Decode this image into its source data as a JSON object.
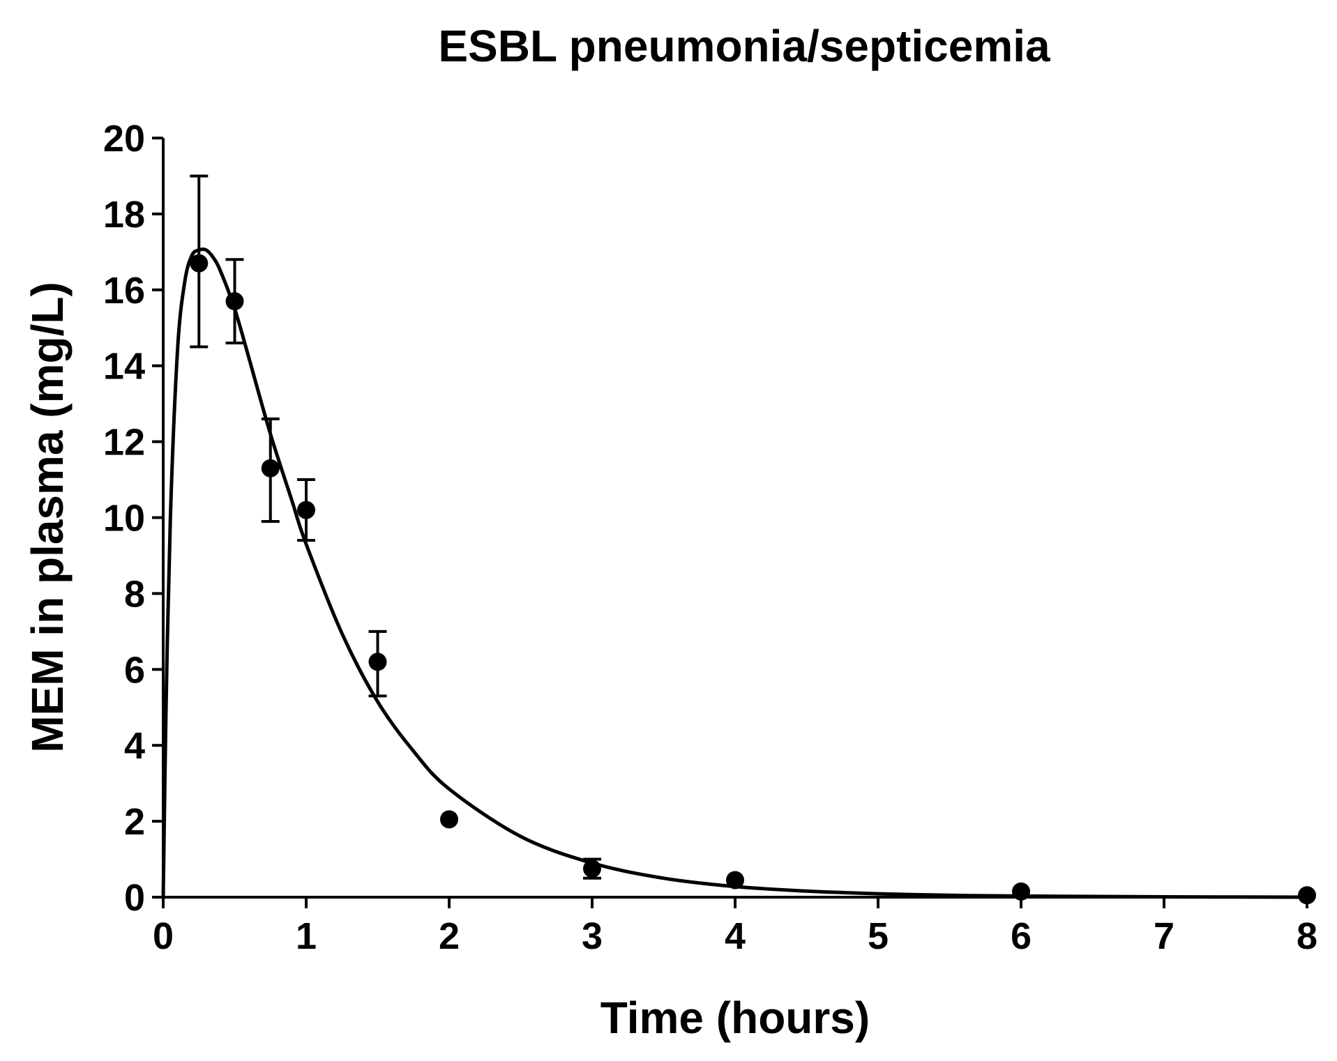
{
  "chart_data": {
    "type": "scatter",
    "title": "ESBL pneumonia/septicemia",
    "xlabel": "Time (hours)",
    "ylabel": "MEM in plasma (mg/L)",
    "xlim": [
      0,
      8
    ],
    "ylim": [
      0,
      20
    ],
    "x_ticks": [
      "0",
      "1",
      "2",
      "3",
      "4",
      "5",
      "6",
      "7",
      "8"
    ],
    "y_ticks": [
      "0",
      "2",
      "4",
      "6",
      "8",
      "10",
      "12",
      "14",
      "16",
      "18",
      "20"
    ],
    "grid": false,
    "legend": "none",
    "colors": {
      "marker": "#000000",
      "line": "#000000",
      "axis": "#000000"
    },
    "series": [
      {
        "marker": "filled-circle",
        "points": [
          {
            "x": 0.25,
            "y": 16.7,
            "err_low": 14.5,
            "err_high": 19.0
          },
          {
            "x": 0.5,
            "y": 15.7,
            "err_low": 14.6,
            "err_high": 16.8
          },
          {
            "x": 0.75,
            "y": 11.3,
            "err_low": 9.9,
            "err_high": 12.6
          },
          {
            "x": 1.0,
            "y": 10.2,
            "err_low": 9.4,
            "err_high": 11.0
          },
          {
            "x": 1.5,
            "y": 6.2,
            "err_low": 5.3,
            "err_high": 7.0
          },
          {
            "x": 2.0,
            "y": 2.05
          },
          {
            "x": 3.0,
            "y": 0.75,
            "err_low": 0.5,
            "err_high": 1.0
          },
          {
            "x": 4.0,
            "y": 0.45
          },
          {
            "x": 6.0,
            "y": 0.15
          },
          {
            "x": 8.0,
            "y": 0.05
          }
        ]
      }
    ],
    "fit_curve": {
      "x": [
        0,
        0.02,
        0.05,
        0.1,
        0.15,
        0.2,
        0.25,
        0.3,
        0.35,
        0.4,
        0.5,
        0.6,
        0.75,
        0.9,
        1.0,
        1.25,
        1.5,
        1.75,
        2.0,
        2.5,
        3.0,
        3.5,
        4.0,
        4.5,
        5.0,
        5.5,
        6.0,
        7.0,
        8.0
      ],
      "y": [
        0.0,
        5.0,
        10.0,
        14.4,
        16.2,
        16.9,
        17.05,
        17.05,
        16.85,
        16.5,
        15.5,
        14.2,
        12.2,
        10.45,
        9.3,
        6.95,
        5.15,
        3.85,
        2.85,
        1.6,
        0.9,
        0.5,
        0.28,
        0.16,
        0.09,
        0.05,
        0.03,
        0.01,
        0.0
      ]
    }
  }
}
